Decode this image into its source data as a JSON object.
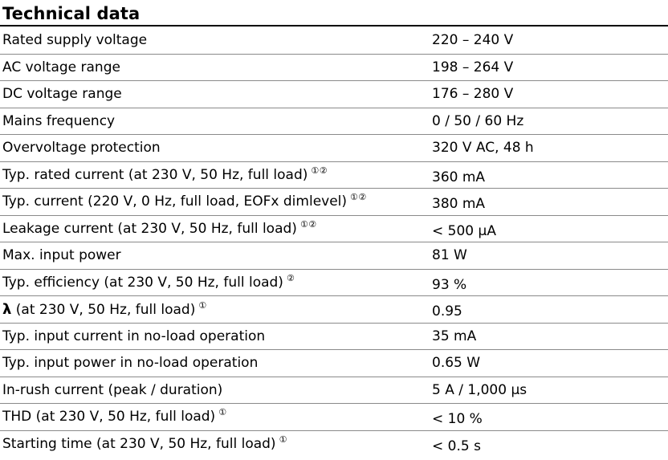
{
  "section": {
    "title": "Technical data"
  },
  "rows": [
    {
      "label": "Rated supply voltage",
      "footnote": "",
      "value": "220 – 240 V"
    },
    {
      "label": "AC voltage range",
      "footnote": "",
      "value": "198 – 264 V"
    },
    {
      "label": "DC voltage range",
      "footnote": "",
      "value": "176 – 280 V"
    },
    {
      "label": "Mains frequency",
      "footnote": "",
      "value": "0 / 50 / 60 Hz"
    },
    {
      "label": "Overvoltage protection",
      "footnote": "",
      "value": "320 V AC, 48 h"
    },
    {
      "label": "Typ. rated current (at 230 V, 50 Hz, full load)",
      "footnote": "①②",
      "value": "360 mA"
    },
    {
      "label": "Typ. current (220 V, 0 Hz, full load, EOFx dimlevel)",
      "footnote": "①②",
      "value": "380 mA"
    },
    {
      "label": "Leakage current (at 230 V, 50 Hz, full load)",
      "footnote": "①②",
      "value": "< 500 μA"
    },
    {
      "label": "Max. input power",
      "footnote": "",
      "value": "81 W"
    },
    {
      "label": "Typ. efficiency (at 230 V, 50 Hz, full load)",
      "footnote": "②",
      "value": "93 %"
    },
    {
      "symbol": "λ",
      "label": " (at 230 V, 50 Hz, full load)",
      "footnote": "①",
      "value": "0.95"
    },
    {
      "label": "Typ. input current in no-load operation",
      "footnote": "",
      "value": "35 mA"
    },
    {
      "label": "Typ. input power in no-load operation",
      "footnote": "",
      "value": "0.65 W"
    },
    {
      "label": "In-rush current (peak / duration)",
      "footnote": "",
      "value": "5 A / 1,000 μs"
    },
    {
      "label": "THD (at 230 V, 50 Hz, full load)",
      "footnote": "①",
      "value": "< 10 %"
    },
    {
      "label": "Starting time (at 230 V, 50 Hz, full load)",
      "footnote": "①",
      "value": "< 0.5 s"
    }
  ]
}
